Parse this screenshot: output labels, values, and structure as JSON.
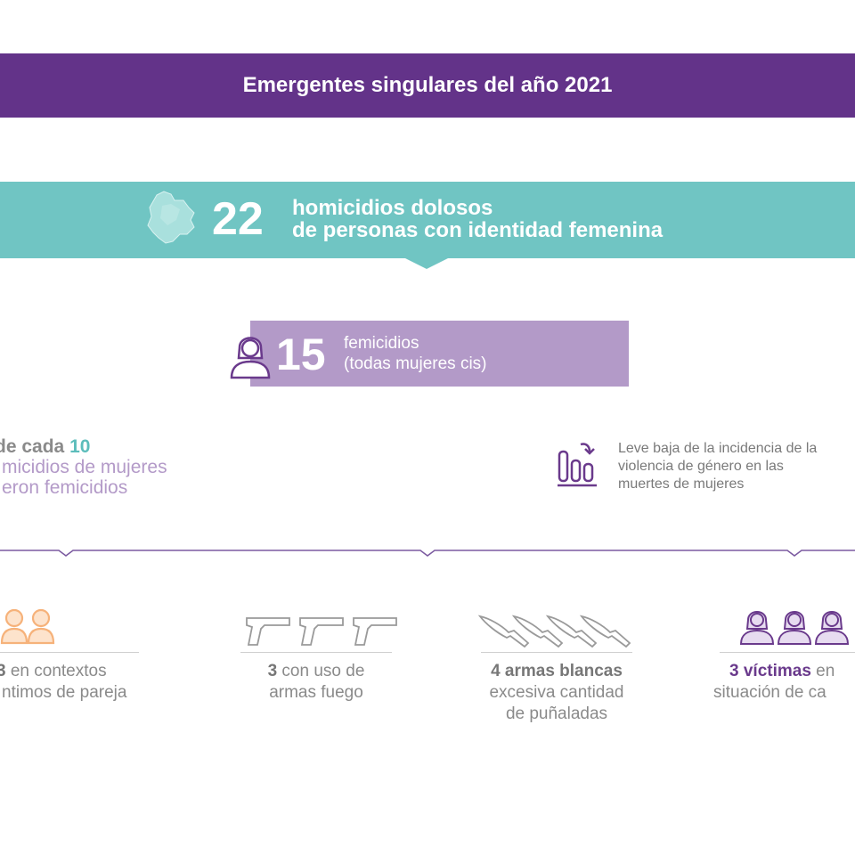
{
  "header": {
    "title": "Emergentes singulares del año 2021"
  },
  "homicides": {
    "number": "22",
    "line1": "homicidios dolosos",
    "line2": "de personas con identidad femenina"
  },
  "femicides": {
    "number": "15",
    "line1": "femicidios",
    "line2": "(todas mujeres cis)"
  },
  "ratio": {
    "line1_prefix": "de cada",
    "line1_number": "10",
    "line2": "micidios de mujeres",
    "line3": "eron femicidios"
  },
  "trend": {
    "line1": "Leve baja de la incidencia de la",
    "line2": "violencia de género en las",
    "line3": "muertes de mujeres"
  },
  "stats": [
    {
      "bold": "3",
      "rest": " en contextos",
      "line2": "ntimos de pareja",
      "icon": "couple-icon"
    },
    {
      "bold": "3",
      "rest": " con uso de",
      "line2": "armas fuego",
      "icon": "gun-icon"
    },
    {
      "bold": "4 armas blancas",
      "rest": "",
      "line2": "excesiva cantidad",
      "line3": "de puñaladas",
      "icon": "knife-icon"
    },
    {
      "bold": "3 víctimas",
      "rest": " en",
      "line2": "situación de ca",
      "icon": "woman-icon"
    }
  ],
  "colors": {
    "purple": "#633389",
    "teal": "#70c5c3",
    "lilac": "#b39ac8",
    "orange": "#f6b27a"
  }
}
